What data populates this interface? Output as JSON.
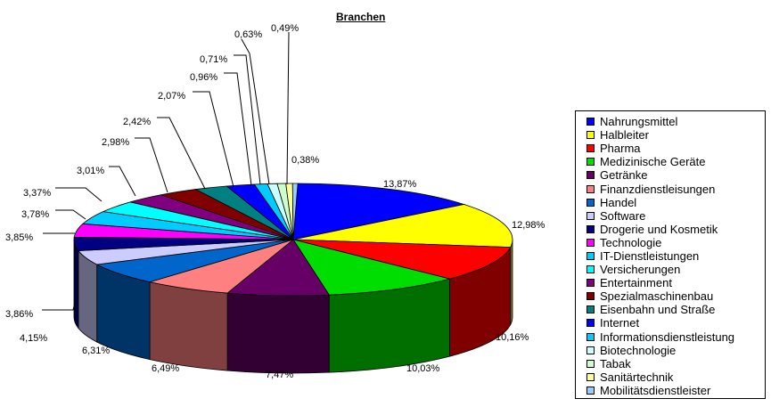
{
  "chart_data": {
    "type": "pie",
    "title": "Branchen",
    "legend_position": "right",
    "slices": [
      {
        "name": "Nahrungsmittel",
        "label": "13,87%",
        "value": 13.87,
        "color": "#0000ff"
      },
      {
        "name": "Halbleiter",
        "label": "12,98%",
        "value": 12.98,
        "color": "#ffff00"
      },
      {
        "name": "Pharma",
        "label": "10,16%",
        "value": 10.16,
        "color": "#ff0000"
      },
      {
        "name": "Medizinische Geräte",
        "label": "10,03%",
        "value": 10.03,
        "color": "#00dd00"
      },
      {
        "name": "Getränke",
        "label": "7,47%",
        "value": 7.47,
        "color": "#660066"
      },
      {
        "name": "Finanzdienstleisungen",
        "label": "6,49%",
        "value": 6.49,
        "color": "#ff8080"
      },
      {
        "name": "Handel",
        "label": "6,31%",
        "value": 6.31,
        "color": "#0066cc"
      },
      {
        "name": "Software",
        "label": "4,15%",
        "value": 4.15,
        "color": "#ccccff"
      },
      {
        "name": "Drogerie und Kosmetik",
        "label": "3,86%",
        "value": 3.86,
        "color": "#000080"
      },
      {
        "name": "Technologie",
        "label": "3,85%",
        "value": 3.85,
        "color": "#ff00ff"
      },
      {
        "name": "IT-Dienstleistungen",
        "label": "3,78%",
        "value": 3.78,
        "color": "#00ccff"
      },
      {
        "name": "Versicherungen",
        "label": "3,37%",
        "value": 3.37,
        "color": "#00ffff"
      },
      {
        "name": "Entertainment",
        "label": "3,01%",
        "value": 3.01,
        "color": "#800080"
      },
      {
        "name": "Spezialmaschinenbau",
        "label": "2,98%",
        "value": 2.98,
        "color": "#800000"
      },
      {
        "name": "Eisenbahn und Straße",
        "label": "2,42%",
        "value": 2.42,
        "color": "#008080"
      },
      {
        "name": "Internet",
        "label": "2,07%",
        "value": 2.07,
        "color": "#0000ff"
      },
      {
        "name": "Informationsdienstleistung",
        "label": "0,96%",
        "value": 0.96,
        "color": "#00ccff"
      },
      {
        "name": "Biotechnologie",
        "label": "0,71%",
        "value": 0.71,
        "color": "#ccffff"
      },
      {
        "name": "Tabak",
        "label": "0,63%",
        "value": 0.63,
        "color": "#ccffcc"
      },
      {
        "name": "Sanitärtechnik",
        "label": "0,49%",
        "value": 0.49,
        "color": "#ffff99"
      },
      {
        "name": "Mobilitätsdienstleister",
        "label": "0,38%",
        "value": 0.38,
        "color": "#99ccff"
      }
    ]
  }
}
